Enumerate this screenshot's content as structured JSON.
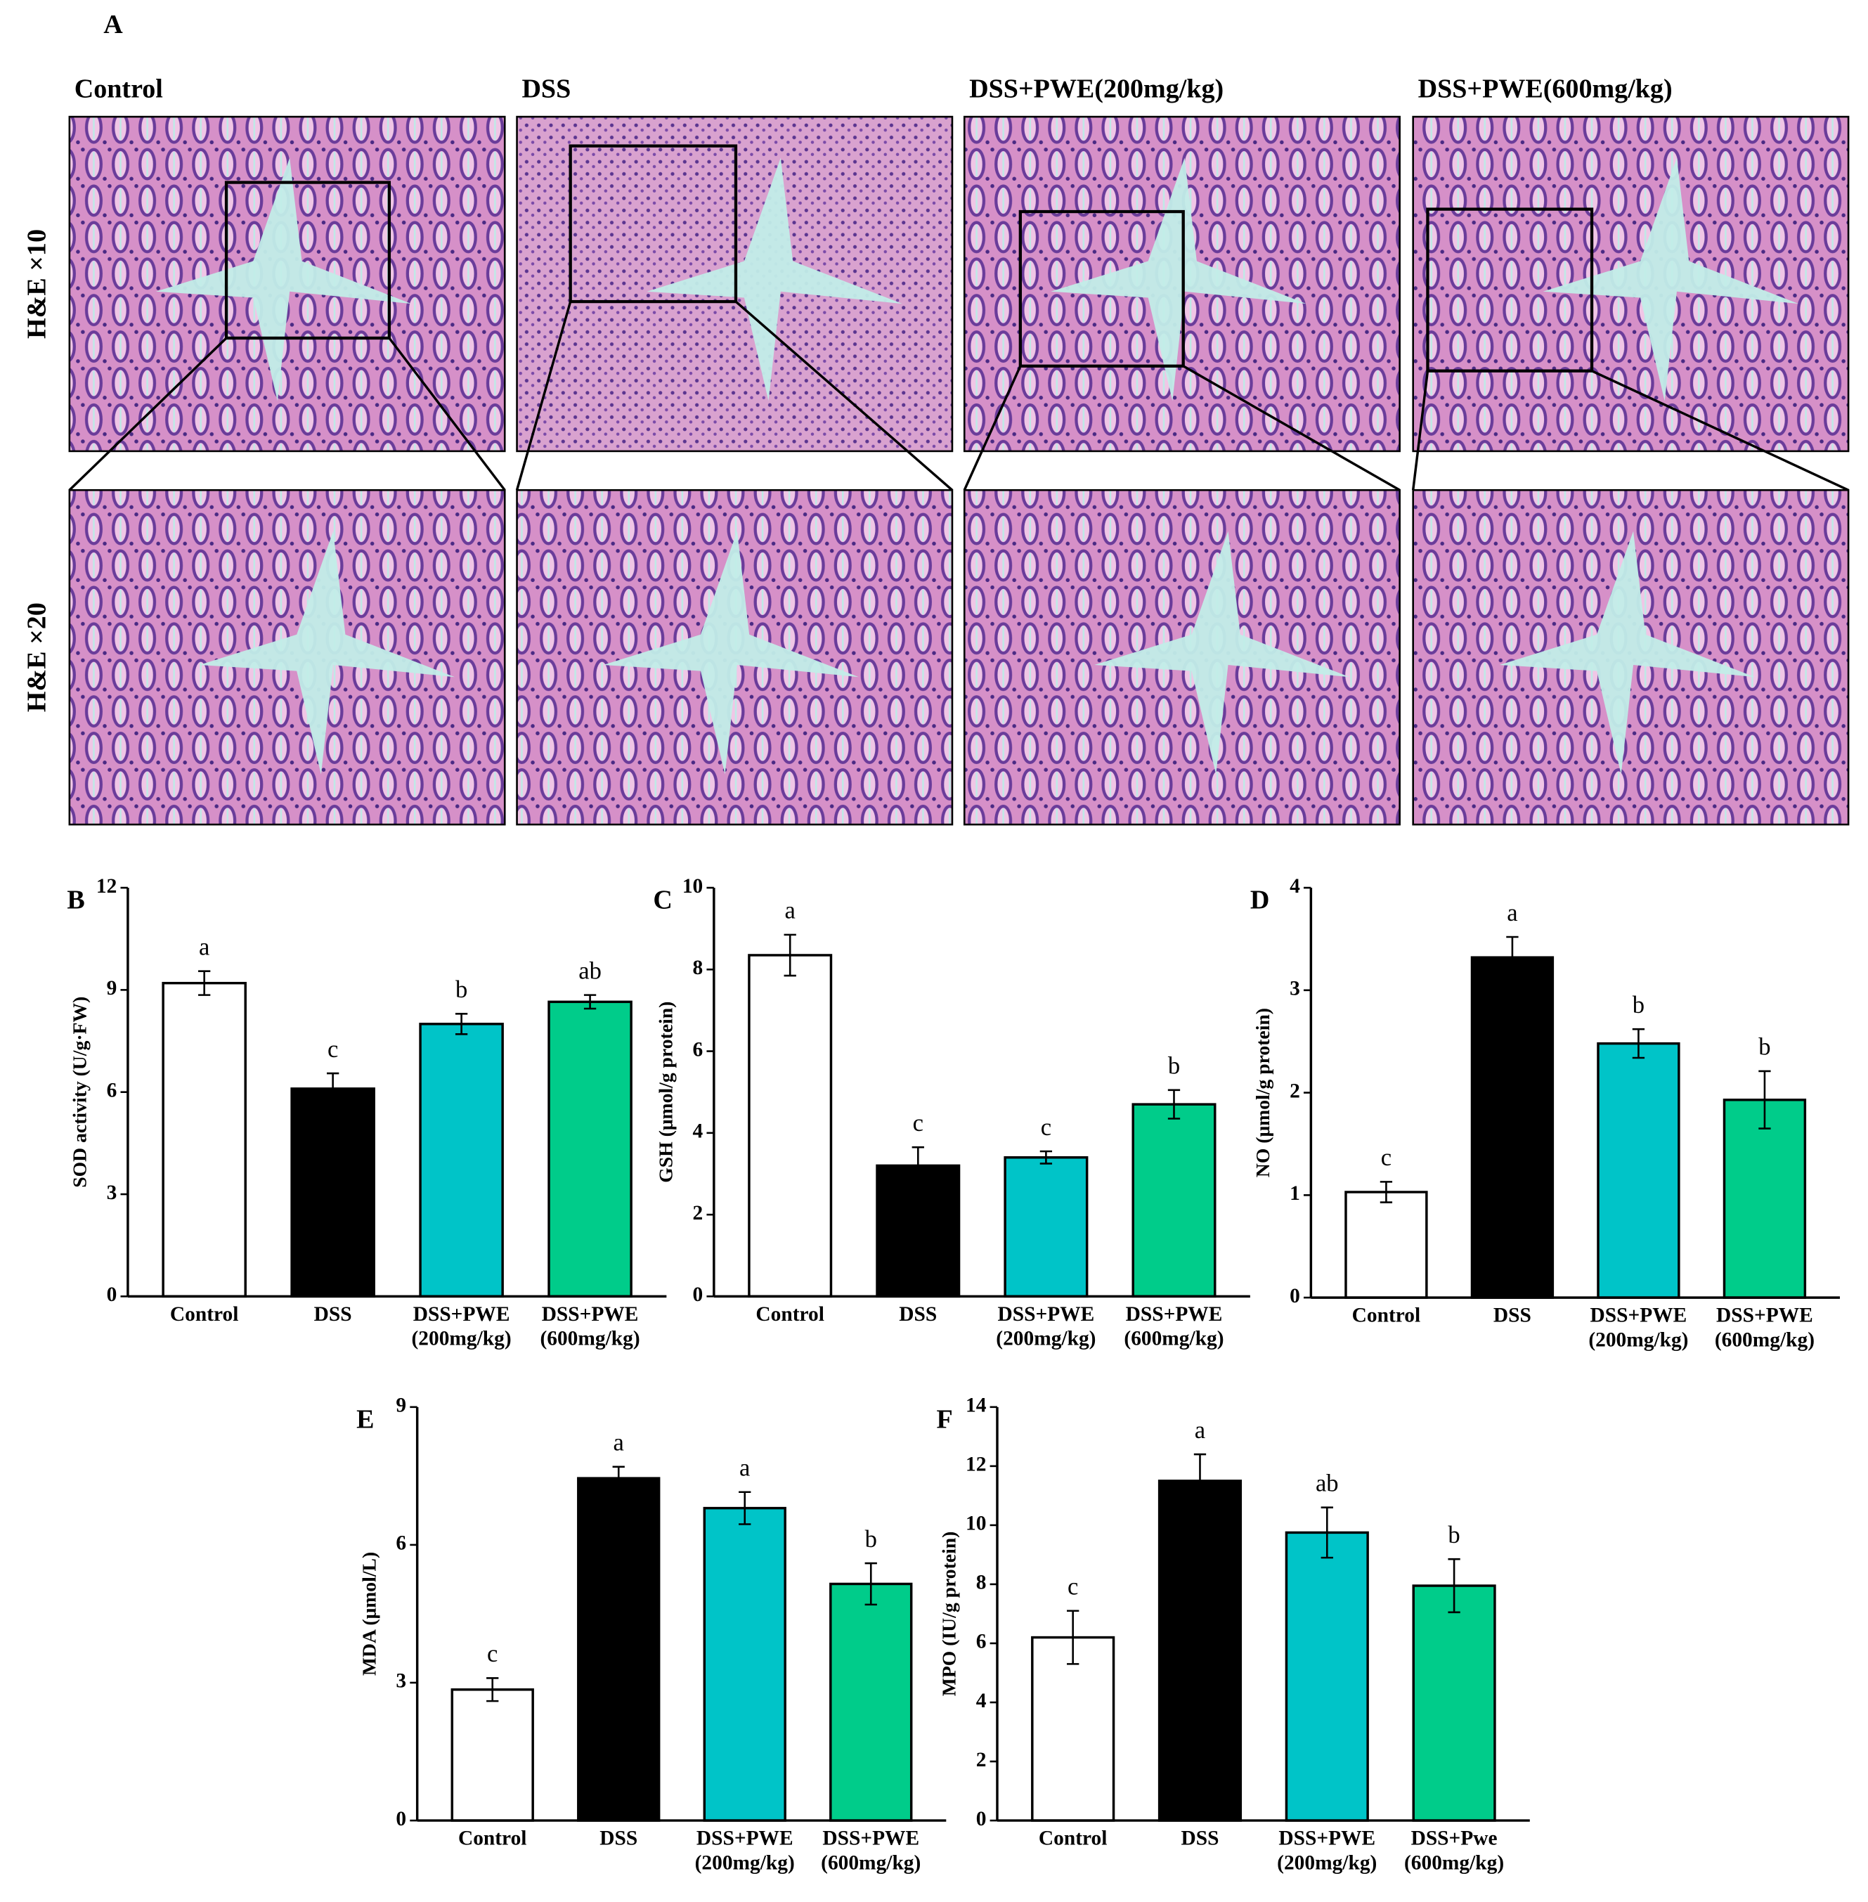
{
  "panel_a": {
    "label": "A",
    "columns": [
      "Control",
      "DSS",
      "DSS+PWE(200mg/kg)",
      "DSS+PWE(600mg/kg)"
    ],
    "rows": [
      "H&E  ×10",
      "H&E  ×20"
    ]
  },
  "chart_data": [
    {
      "type": "bar",
      "panel_label": "B",
      "y_label": "SOD activity (U/g·FW)",
      "categories": [
        "Control",
        "DSS",
        "DSS+PWE\n(200mg/kg)",
        "DSS+PWE\n(600mg/kg)"
      ],
      "values": [
        9.2,
        6.1,
        8.0,
        8.65
      ],
      "errors": [
        0.35,
        0.45,
        0.3,
        0.2
      ],
      "letters": [
        "a",
        "c",
        "b",
        "ab"
      ],
      "colors": [
        "#ffffff",
        "#000000",
        "#00c4c8",
        "#00cc8a"
      ],
      "ylim": [
        0,
        12
      ],
      "yticks": [
        0,
        3,
        6,
        9,
        12
      ]
    },
    {
      "type": "bar",
      "panel_label": "C",
      "y_label": "GSH (μmol/g protein)",
      "categories": [
        "Control",
        "DSS",
        "DSS+PWE\n(200mg/kg)",
        "DSS+PWE\n(600mg/kg)"
      ],
      "values": [
        8.35,
        3.2,
        3.4,
        4.7
      ],
      "errors": [
        0.5,
        0.45,
        0.15,
        0.35
      ],
      "letters": [
        "a",
        "c",
        "c",
        "b"
      ],
      "colors": [
        "#ffffff",
        "#000000",
        "#00c4c8",
        "#00cc8a"
      ],
      "ylim": [
        0,
        10
      ],
      "yticks": [
        0,
        2,
        4,
        6,
        8,
        10
      ]
    },
    {
      "type": "bar",
      "panel_label": "D",
      "y_label": "NO (μmol/g protein)",
      "categories": [
        "Control",
        "DSS",
        "DSS+PWE\n(200mg/kg)",
        "DSS+PWE\n(600mg/kg)"
      ],
      "values": [
        1.03,
        3.32,
        2.48,
        1.93
      ],
      "errors": [
        0.1,
        0.2,
        0.14,
        0.28
      ],
      "letters": [
        "c",
        "a",
        "b",
        "b"
      ],
      "colors": [
        "#ffffff",
        "#000000",
        "#00c4c8",
        "#00cc8a"
      ],
      "ylim": [
        0,
        4
      ],
      "yticks": [
        0,
        1,
        2,
        3,
        4
      ]
    },
    {
      "type": "bar",
      "panel_label": "E",
      "y_label": "MDA (μmol/L)",
      "categories": [
        "Control",
        "DSS",
        "DSS+PWE\n(200mg/kg)",
        "DSS+PWE\n(600mg/kg)"
      ],
      "values": [
        2.85,
        7.45,
        6.8,
        5.15
      ],
      "errors": [
        0.25,
        0.25,
        0.35,
        0.45
      ],
      "letters": [
        "c",
        "a",
        "a",
        "b"
      ],
      "colors": [
        "#ffffff",
        "#000000",
        "#00c4c8",
        "#00cc8a"
      ],
      "ylim": [
        0,
        9
      ],
      "yticks": [
        0,
        3,
        6,
        9
      ]
    },
    {
      "type": "bar",
      "panel_label": "F",
      "y_label": "MPO (IU/g protein)",
      "categories": [
        "Control",
        "DSS",
        "DSS+PWE\n(200mg/kg)",
        "DSS+Pwe\n(600mg/kg)"
      ],
      "values": [
        6.2,
        11.5,
        9.75,
        7.95
      ],
      "errors": [
        0.9,
        0.9,
        0.85,
        0.9
      ],
      "letters": [
        "c",
        "a",
        "ab",
        "b"
      ],
      "colors": [
        "#ffffff",
        "#000000",
        "#00c4c8",
        "#00cc8a"
      ],
      "ylim": [
        0,
        14
      ],
      "yticks": [
        0,
        2,
        4,
        6,
        8,
        10,
        12,
        14
      ]
    }
  ]
}
